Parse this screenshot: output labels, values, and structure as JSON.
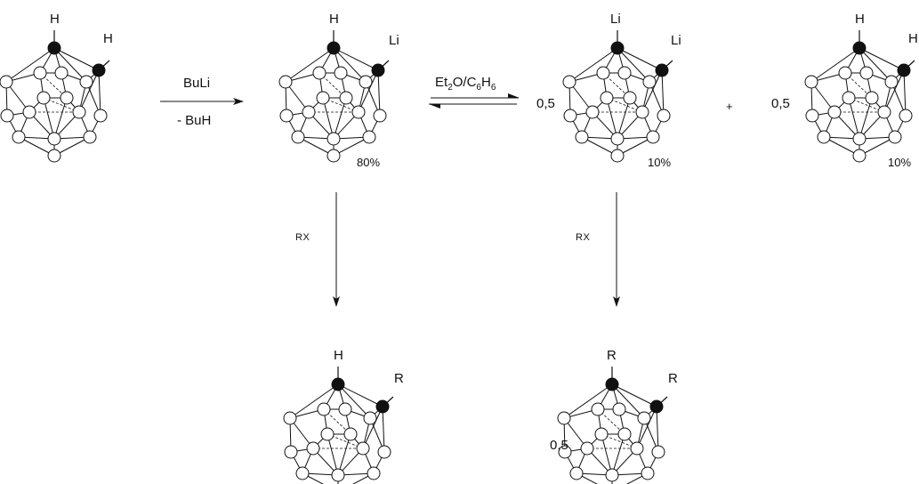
{
  "scheme": {
    "molecules": [
      {
        "id": "m1",
        "top_sub": "H",
        "side_sub": "H",
        "percent": "",
        "coef": ""
      },
      {
        "id": "m2",
        "top_sub": "H",
        "side_sub": "Li",
        "percent": "80%",
        "coef": ""
      },
      {
        "id": "m3",
        "top_sub": "Li",
        "side_sub": "Li",
        "percent": "10%",
        "coef": "0,5"
      },
      {
        "id": "m4",
        "top_sub": "H",
        "side_sub": "H",
        "percent": "10%",
        "coef": "0,5"
      },
      {
        "id": "m5",
        "top_sub": "H",
        "side_sub": "R",
        "percent": "",
        "coef": ""
      },
      {
        "id": "m6",
        "top_sub": "R",
        "side_sub": "R",
        "percent": "",
        "coef": "0,5"
      }
    ],
    "plus_sign": "+",
    "arrows": {
      "a1": {
        "above": "BuLi",
        "below": "- BuH"
      },
      "a2": {
        "above": "Et",
        "above_sub1": "2",
        "above_mid": "O/C",
        "above_sub2": "6",
        "above_end": "H",
        "above_sub3": "6"
      },
      "a3": {
        "label": "RX"
      },
      "a4": {
        "label": "RX"
      }
    }
  }
}
